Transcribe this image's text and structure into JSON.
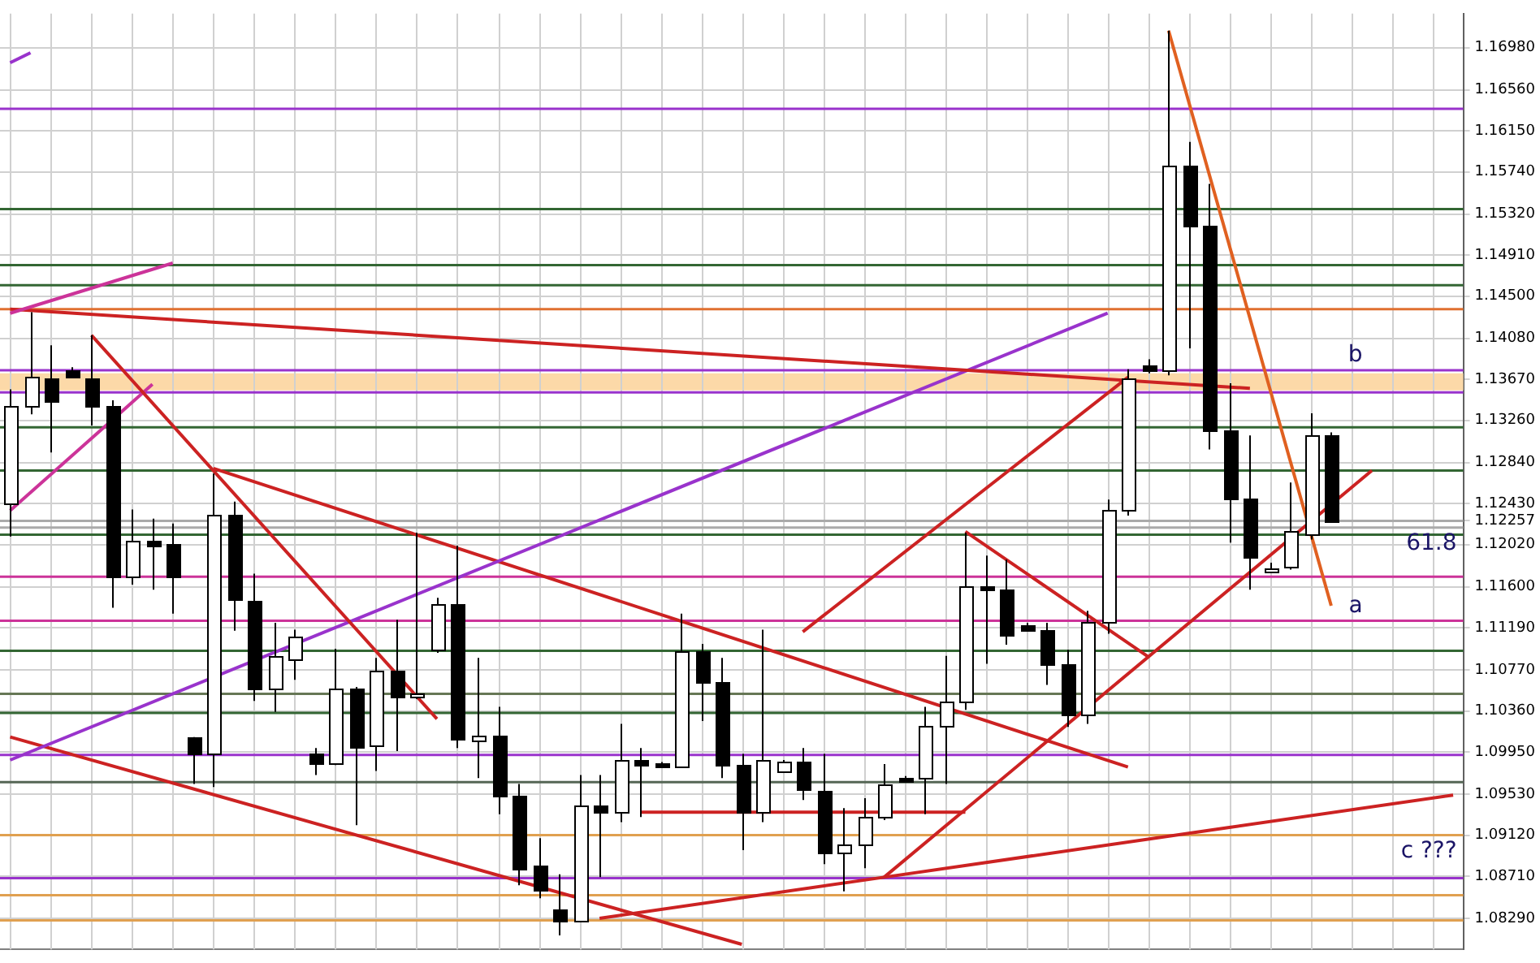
{
  "chart_data": {
    "type": "candlestick",
    "categories": [
      null,
      null,
      null,
      null,
      null,
      null,
      null,
      null,
      null,
      null,
      null,
      null,
      null,
      null,
      null,
      null,
      null,
      null,
      null,
      null,
      null,
      null,
      null,
      null,
      null,
      null,
      null,
      null,
      null,
      null,
      null,
      null,
      null,
      null,
      null,
      null,
      null,
      null,
      null,
      null,
      null,
      null,
      null,
      null,
      null,
      null,
      null,
      null,
      null,
      null,
      null,
      null,
      null,
      null,
      null,
      null,
      null,
      null,
      null,
      null,
      null,
      null,
      null,
      null,
      null,
      null,
      null,
      null,
      null,
      null,
      null,
      null
    ],
    "ohlc": [
      [
        1.1243,
        1.1357,
        1.121,
        1.1341
      ],
      [
        1.1341,
        1.1434,
        1.1332,
        1.137
      ],
      [
        1.1368,
        1.1401,
        1.1294,
        1.1346
      ],
      [
        1.1376,
        1.1379,
        1.1368,
        1.137
      ],
      [
        1.1368,
        1.1411,
        1.1321,
        1.1341
      ],
      [
        1.1341,
        1.1346,
        1.1139,
        1.1171
      ],
      [
        1.1171,
        1.1237,
        1.1162,
        1.1206
      ],
      [
        1.1206,
        1.1228,
        1.1157,
        1.1201
      ],
      [
        1.1203,
        1.1223,
        1.1133,
        1.1171
      ],
      [
        1.1009,
        1.101,
        1.0963,
        1.0993
      ],
      [
        1.0993,
        1.1273,
        1.096,
        1.1231
      ],
      [
        1.1231,
        1.1245,
        1.1116,
        1.1146
      ],
      [
        1.1146,
        1.1173,
        1.1046,
        1.1058
      ],
      [
        1.1058,
        1.1124,
        1.1035,
        1.1091
      ],
      [
        1.1089,
        1.1117,
        1.1067,
        1.1111
      ],
      [
        1.0994,
        1.0999,
        1.0972,
        1.0985
      ],
      [
        1.0985,
        1.1098,
        1.0982,
        1.1059
      ],
      [
        1.1059,
        1.106,
        1.0922,
        1.1001
      ],
      [
        1.1001,
        1.1089,
        1.0976,
        1.1076
      ],
      [
        1.1076,
        1.1127,
        1.0996,
        1.105
      ],
      [
        1.105,
        1.1214,
        1.1048,
        1.1053
      ],
      [
        1.1097,
        1.1149,
        1.1094,
        1.1143
      ],
      [
        1.1143,
        1.1201,
        1.0999,
        1.1009
      ],
      [
        1.1007,
        1.1089,
        1.0969,
        1.1012
      ],
      [
        1.1012,
        1.104,
        1.0933,
        1.0952
      ],
      [
        1.0952,
        1.0963,
        1.0862,
        1.0879
      ],
      [
        1.0881,
        1.0909,
        1.0849,
        1.0856
      ],
      [
        1.0838,
        1.0873,
        1.0812,
        1.0827
      ],
      [
        1.0827,
        1.0972,
        1.0826,
        1.0942
      ],
      [
        1.0942,
        1.0972,
        1.087,
        1.0935
      ],
      [
        1.0935,
        1.1023,
        1.0925,
        1.0987
      ],
      [
        1.0987,
        1.0999,
        1.093,
        1.0982
      ],
      [
        1.0983,
        1.0985,
        1.0979,
        1.098
      ],
      [
        1.098,
        1.1133,
        1.0979,
        1.1095
      ],
      [
        1.1095,
        1.1103,
        1.1026,
        1.1065
      ],
      [
        1.1065,
        1.1089,
        1.0969,
        1.0982
      ],
      [
        1.0982,
        1.0993,
        1.0897,
        1.0935
      ],
      [
        1.0935,
        1.1117,
        1.0925,
        1.0987
      ],
      [
        1.0976,
        1.0987,
        1.0974,
        1.0985
      ],
      [
        1.0985,
        1.0999,
        1.0947,
        1.0957
      ],
      [
        1.0957,
        1.0993,
        1.0883,
        1.0895
      ],
      [
        1.0895,
        1.0939,
        1.0856,
        1.0903
      ],
      [
        1.0903,
        1.0949,
        1.0879,
        1.093
      ],
      [
        1.093,
        1.0983,
        1.0927,
        1.0963
      ],
      [
        1.0969,
        1.0971,
        1.0965,
        1.0966
      ],
      [
        1.0969,
        1.104,
        1.0933,
        1.1021
      ],
      [
        1.1021,
        1.1091,
        1.0963,
        1.1045
      ],
      [
        1.1045,
        1.1214,
        1.1037,
        1.116
      ],
      [
        1.116,
        1.1191,
        1.1083,
        1.1157
      ],
      [
        1.1157,
        1.1187,
        1.1102,
        1.1111
      ],
      [
        1.1122,
        1.1124,
        1.1116,
        1.1117
      ],
      [
        1.1117,
        1.1124,
        1.1062,
        1.1083
      ],
      [
        1.1083,
        1.1097,
        1.102,
        1.1032
      ],
      [
        1.1032,
        1.1136,
        1.1023,
        1.1124
      ],
      [
        1.1124,
        1.1247,
        1.1113,
        1.1236
      ],
      [
        1.1236,
        1.1377,
        1.1231,
        1.1368
      ],
      [
        1.1381,
        1.1387,
        1.1373,
        1.1376
      ],
      [
        1.1376,
        1.1715,
        1.1371,
        1.1581
      ],
      [
        1.1581,
        1.1604,
        1.1398,
        1.1521
      ],
      [
        1.1521,
        1.1562,
        1.1297,
        1.1316
      ],
      [
        1.1316,
        1.1363,
        1.1204,
        1.1248
      ],
      [
        1.1248,
        1.1311,
        1.1157,
        1.119
      ],
      [
        1.1176,
        1.1184,
        1.1174,
        1.1179
      ],
      [
        1.1179,
        1.1264,
        1.1177,
        1.1215
      ],
      [
        1.1212,
        1.1333,
        1.1207,
        1.1311
      ],
      [
        1.1311,
        1.1314,
        1.1225,
        1.12257
      ],
      null,
      null,
      null,
      null,
      null,
      null
    ],
    "series": [
      {
        "type": "line",
        "color": "#9933cc",
        "values": [
          1.1683,
          1.1693,
          null,
          null,
          null,
          null,
          null,
          null,
          null,
          null,
          null,
          null,
          null,
          null,
          null,
          null,
          null,
          null,
          null,
          null,
          null,
          null,
          null,
          null,
          null,
          null,
          null,
          null,
          null,
          null,
          null,
          null,
          null,
          null,
          null,
          null,
          null,
          null,
          null,
          null,
          null,
          null,
          null,
          null,
          null,
          null,
          null,
          null,
          null,
          null,
          null,
          null,
          null,
          null,
          null,
          null,
          null,
          null,
          null,
          null,
          null,
          null,
          null,
          null,
          null,
          null,
          null,
          null,
          null,
          null,
          null,
          null
        ]
      },
      {
        "type": "line",
        "color": "#cc3399",
        "values": [
          1.1433,
          null,
          null,
          null,
          null,
          null,
          null,
          null,
          1.1483,
          null,
          null,
          null,
          null,
          null,
          null,
          null,
          null,
          null,
          null,
          null,
          null,
          null,
          null,
          null,
          null,
          null,
          null,
          null,
          null,
          null,
          null,
          null,
          null,
          null,
          null,
          null,
          null,
          null,
          null,
          null,
          null,
          null,
          null,
          null,
          null,
          null,
          null,
          null,
          null,
          null,
          null,
          null,
          null,
          null,
          null,
          null,
          null,
          null,
          null,
          null,
          null,
          null,
          null,
          null,
          null,
          null,
          null,
          null,
          null,
          null,
          null,
          null
        ]
      },
      {
        "type": "line",
        "color": "#cc2222",
        "values": [
          1.1437,
          null,
          null,
          null,
          null,
          null,
          null,
          null,
          null,
          null,
          null,
          null,
          null,
          null,
          null,
          null,
          null,
          null,
          null,
          null,
          null,
          null,
          null,
          null,
          null,
          null,
          null,
          null,
          null,
          null,
          null,
          null,
          null,
          null,
          null,
          null,
          null,
          null,
          null,
          null,
          null,
          null,
          null,
          null,
          null,
          null,
          null,
          null,
          null,
          null,
          null,
          null,
          null,
          null,
          null,
          null,
          null,
          null,
          null,
          null,
          null,
          1.1358,
          null,
          null,
          null,
          null,
          null,
          null,
          null,
          null,
          null,
          null
        ]
      },
      {
        "type": "line",
        "color": "#cc2222",
        "values": [
          null,
          null,
          null,
          null,
          1.1411,
          null,
          null,
          null,
          null,
          null,
          null,
          null,
          null,
          null,
          null,
          null,
          null,
          null,
          null,
          null,
          null,
          1.1028,
          null,
          null,
          null,
          null,
          null,
          null,
          null,
          null,
          null,
          null,
          null,
          null,
          null,
          null,
          null,
          null,
          null,
          null,
          null,
          null,
          null,
          null,
          null,
          null,
          null,
          null,
          null,
          null,
          null,
          null,
          null,
          null,
          null,
          null,
          null,
          null,
          null,
          null,
          null,
          null,
          null,
          null,
          null,
          null,
          null,
          null,
          null,
          null,
          null,
          null
        ]
      },
      {
        "type": "line",
        "color": "#cc3399",
        "values": [
          1.1236,
          null,
          null,
          null,
          null,
          null,
          null,
          1.1362,
          null,
          null,
          null,
          null,
          null,
          null,
          null,
          null,
          null,
          null,
          null,
          null,
          null,
          null,
          null,
          null,
          null,
          null,
          null,
          null,
          null,
          null,
          null,
          null,
          null,
          null,
          null,
          null,
          null,
          null,
          null,
          null,
          null,
          null,
          null,
          null,
          null,
          null,
          null,
          null,
          null,
          null,
          null,
          null,
          null,
          null,
          null,
          null,
          null,
          null,
          null,
          null,
          null,
          null,
          null,
          null,
          null,
          null,
          null,
          null,
          null,
          null,
          null,
          null
        ]
      },
      {
        "type": "line",
        "color": "#9933cc",
        "values": [
          1.0987,
          null,
          null,
          null,
          null,
          null,
          null,
          null,
          null,
          null,
          null,
          null,
          null,
          null,
          null,
          null,
          null,
          null,
          null,
          null,
          null,
          null,
          null,
          null,
          null,
          null,
          null,
          null,
          null,
          null,
          null,
          null,
          null,
          null,
          null,
          null,
          null,
          null,
          null,
          null,
          null,
          null,
          null,
          null,
          null,
          null,
          null,
          null,
          null,
          null,
          null,
          null,
          null,
          null,
          1.1433,
          null,
          null,
          null,
          null,
          null,
          null,
          null,
          null,
          null,
          null,
          null,
          null,
          null,
          null,
          null,
          null,
          null
        ]
      },
      {
        "type": "line",
        "color": "#cc2222",
        "values": [
          null,
          null,
          null,
          null,
          null,
          null,
          null,
          null,
          null,
          null,
          1.1278,
          null,
          null,
          null,
          null,
          null,
          null,
          null,
          null,
          null,
          null,
          null,
          null,
          null,
          null,
          null,
          null,
          null,
          null,
          null,
          null,
          null,
          null,
          null,
          null,
          null,
          null,
          null,
          null,
          null,
          null,
          null,
          null,
          null,
          null,
          null,
          null,
          null,
          null,
          null,
          null,
          null,
          null,
          null,
          null,
          1.098,
          null,
          null,
          null,
          null,
          null,
          null,
          null,
          null,
          null,
          null,
          null,
          null,
          null,
          null,
          null,
          null
        ]
      },
      {
        "type": "line",
        "color": "#cc2222",
        "values": [
          1.101,
          null,
          null,
          null,
          null,
          null,
          null,
          null,
          null,
          null,
          null,
          null,
          null,
          null,
          null,
          null,
          null,
          null,
          null,
          null,
          null,
          null,
          null,
          null,
          null,
          null,
          null,
          null,
          null,
          null,
          null,
          null,
          null,
          null,
          null,
          null,
          1.0803,
          null,
          null,
          null,
          null,
          null,
          null,
          null,
          null,
          null,
          null,
          null,
          null,
          null,
          null,
          null,
          null,
          null,
          null,
          null,
          null,
          null,
          null,
          null,
          null,
          null,
          null,
          null,
          null,
          null,
          null,
          null,
          null,
          null,
          null,
          null
        ]
      },
      {
        "type": "line",
        "color": "#cc2222",
        "values": [
          null,
          null,
          null,
          null,
          null,
          null,
          null,
          null,
          null,
          null,
          null,
          null,
          null,
          null,
          null,
          null,
          null,
          null,
          null,
          null,
          null,
          null,
          null,
          null,
          null,
          null,
          null,
          null,
          null,
          1.0829,
          null,
          null,
          null,
          null,
          null,
          null,
          null,
          null,
          null,
          null,
          null,
          null,
          null,
          1.087,
          null,
          null,
          null,
          null,
          null,
          null,
          null,
          null,
          null,
          null,
          null,
          null,
          null,
          null,
          null,
          null,
          null,
          null,
          null,
          null,
          null,
          null,
          null,
          null,
          null,
          null,
          null,
          1.0952
        ]
      },
      {
        "type": "line",
        "color": "#cc2222",
        "values": [
          null,
          null,
          null,
          null,
          null,
          null,
          null,
          null,
          null,
          null,
          null,
          null,
          null,
          null,
          null,
          null,
          null,
          null,
          null,
          null,
          null,
          null,
          null,
          null,
          null,
          null,
          null,
          null,
          null,
          null,
          null,
          null,
          null,
          null,
          null,
          null,
          null,
          null,
          null,
          null,
          null,
          null,
          null,
          1.087,
          null,
          null,
          null,
          null,
          null,
          null,
          null,
          null,
          null,
          null,
          null,
          null,
          null,
          null,
          null,
          null,
          null,
          null,
          null,
          null,
          null,
          null,
          null,
          1.1276,
          null,
          null,
          null,
          null
        ]
      },
      {
        "type": "line",
        "color": "#cc2222",
        "values": [
          null,
          null,
          null,
          null,
          null,
          null,
          null,
          null,
          null,
          null,
          null,
          null,
          null,
          null,
          null,
          null,
          null,
          null,
          null,
          null,
          null,
          null,
          null,
          null,
          null,
          null,
          null,
          null,
          null,
          null,
          null,
          null,
          null,
          null,
          null,
          null,
          null,
          null,
          null,
          1.1115,
          null,
          null,
          null,
          null,
          null,
          null,
          null,
          null,
          null,
          null,
          null,
          null,
          null,
          null,
          null,
          1.1369,
          null,
          null,
          null,
          null,
          null,
          null,
          null,
          null,
          null,
          null,
          null,
          null,
          null,
          null,
          null,
          null
        ]
      },
      {
        "type": "line",
        "color": "#cc2222",
        "values": [
          null,
          null,
          null,
          null,
          null,
          null,
          null,
          null,
          null,
          null,
          null,
          null,
          null,
          null,
          null,
          null,
          null,
          null,
          null,
          null,
          null,
          null,
          null,
          null,
          null,
          null,
          null,
          null,
          null,
          null,
          null,
          null,
          null,
          null,
          null,
          null,
          null,
          null,
          null,
          null,
          null,
          null,
          null,
          null,
          null,
          null,
          null,
          1.1215,
          null,
          null,
          null,
          null,
          null,
          null,
          null,
          null,
          1.109,
          null,
          null,
          null,
          null,
          null,
          null,
          null,
          null,
          null,
          null,
          null,
          null,
          null,
          null,
          null
        ]
      },
      {
        "type": "line",
        "color": "#cc2222",
        "values": [
          null,
          null,
          null,
          null,
          null,
          null,
          null,
          null,
          null,
          null,
          null,
          null,
          null,
          null,
          null,
          null,
          null,
          null,
          null,
          null,
          null,
          null,
          null,
          null,
          null,
          null,
          null,
          null,
          null,
          null,
          null,
          1.0935,
          null,
          null,
          null,
          null,
          null,
          null,
          null,
          null,
          null,
          null,
          null,
          null,
          null,
          null,
          null,
          1.0935,
          null,
          null,
          null,
          null,
          null,
          null,
          null,
          null,
          null,
          null,
          null,
          null,
          null,
          null,
          null,
          null,
          null,
          null,
          null,
          null,
          null,
          null,
          null,
          null
        ]
      },
      {
        "type": "line",
        "color": "#e06020",
        "values": [
          null,
          null,
          null,
          null,
          null,
          null,
          null,
          null,
          null,
          null,
          null,
          null,
          null,
          null,
          null,
          null,
          null,
          null,
          null,
          null,
          null,
          null,
          null,
          null,
          null,
          null,
          null,
          null,
          null,
          null,
          null,
          null,
          null,
          null,
          null,
          null,
          null,
          null,
          null,
          null,
          null,
          null,
          null,
          null,
          null,
          null,
          null,
          null,
          null,
          null,
          null,
          null,
          null,
          null,
          null,
          null,
          null,
          1.1715,
          null,
          null,
          null,
          null,
          null,
          null,
          null,
          1.1141,
          null,
          null,
          null,
          null,
          null,
          null
        ]
      }
    ],
    "ylim": [
      1.0798,
      1.1732
    ],
    "yticks": [
      {
        "value": 1.1698,
        "label": "1.16980"
      },
      {
        "value": 1.1656,
        "label": "1.16560"
      },
      {
        "value": 1.1615,
        "label": "1.16150"
      },
      {
        "value": 1.1574,
        "label": "1.15740"
      },
      {
        "value": 1.1532,
        "label": "1.15320"
      },
      {
        "value": 1.1491,
        "label": "1.14910"
      },
      {
        "value": 1.145,
        "label": "1.14500"
      },
      {
        "value": 1.1408,
        "label": "1.14080"
      },
      {
        "value": 1.1367,
        "label": "1.13670"
      },
      {
        "value": 1.1326,
        "label": "1.13260"
      },
      {
        "value": 1.1284,
        "label": "1.12840"
      },
      {
        "value": 1.1243,
        "label": "1.12430"
      },
      1.12257,
      {
        "value": 1.1202,
        "label": "1.12020"
      },
      {
        "value": 1.116,
        "label": "1.11600"
      },
      {
        "value": 1.1119,
        "label": "1.11190"
      },
      {
        "value": 1.1077,
        "label": "1.10770"
      },
      {
        "value": 1.1036,
        "label": "1.10360"
      },
      {
        "value": 1.0995,
        "label": "1.09950"
      },
      {
        "value": 1.0953,
        "label": "1.09530"
      },
      {
        "value": 1.0912,
        "label": "1.09120"
      },
      {
        "value": 1.0871,
        "label": "1.08710"
      },
      {
        "value": 1.0829,
        "label": "1.08290"
      }
    ],
    "ref_lines": [
      {
        "axis": "y",
        "value": 1.1637,
        "color": "#9933cc"
      },
      {
        "axis": "y",
        "value": 1.1537,
        "color": "#336633"
      },
      {
        "axis": "y",
        "value": 1.1481,
        "color": "#336633"
      },
      {
        "axis": "y",
        "value": 1.1461,
        "color": "#336633"
      },
      {
        "axis": "y",
        "value": 1.1437,
        "color": "#e07030"
      },
      {
        "axis": "y",
        "value": 1.1376,
        "color": "#9933cc",
        "label": "b"
      },
      {
        "axis": "y",
        "value": 1.1354,
        "color": "#9933cc"
      },
      {
        "axis": "y",
        "value": 1.1319,
        "color": "#336633"
      },
      {
        "axis": "y",
        "value": 1.1276,
        "color": "#336633"
      },
      {
        "axis": "y",
        "value": 1.12257,
        "color": "#aaaaaa"
      },
      {
        "axis": "y",
        "value": 1.1219,
        "color": "#aaaaaa"
      },
      {
        "axis": "y",
        "value": 1.1212,
        "color": "#336633"
      },
      {
        "axis": "y",
        "value": 1.117,
        "color": "#cc3399"
      },
      {
        "axis": "y",
        "value": 1.1126,
        "color": "#cc3399",
        "label": "a"
      },
      {
        "axis": "y",
        "value": 1.1096,
        "color": "#336633"
      },
      {
        "axis": "y",
        "value": 1.1053,
        "color": "#667755"
      },
      {
        "axis": "y",
        "value": 1.1034,
        "color": "#336633"
      },
      {
        "axis": "y",
        "value": 1.0992,
        "color": "#9933cc"
      },
      {
        "axis": "y",
        "value": 1.0965,
        "color": "#556655"
      },
      {
        "axis": "y",
        "value": 1.0912,
        "color": "#e0a050"
      },
      {
        "axis": "y",
        "value": 1.0869,
        "color": "#9933cc"
      },
      {
        "axis": "y",
        "value": 1.0852,
        "color": "#e0a050"
      },
      {
        "axis": "y",
        "value": 1.0827,
        "color": "#e0a050"
      }
    ],
    "bands": [
      {
        "axis": "y",
        "from": 1.1356,
        "to": 1.1373,
        "color": "#fcd9a8"
      }
    ],
    "annotations": [
      {
        "text": "61.8",
        "y": 1.1219
      },
      {
        "text": "c ???",
        "y": 1.0912
      }
    ],
    "grid": true,
    "tick_labels": "y"
  }
}
